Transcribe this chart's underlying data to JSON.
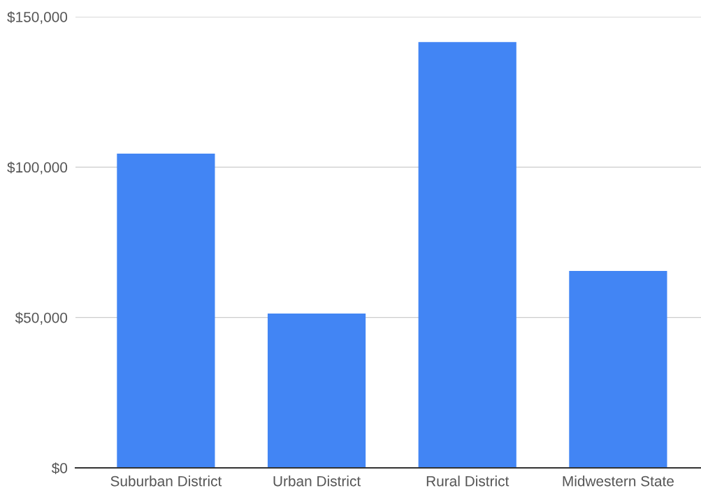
{
  "chart_data": {
    "type": "bar",
    "categories": [
      "Suburban District",
      "Urban District",
      "Rural District",
      "Midwestern State"
    ],
    "values": [
      104500,
      51300,
      141600,
      65500
    ],
    "color": "#4285f4",
    "ylim": [
      0,
      150000
    ],
    "yticks": [
      {
        "value": 0,
        "label": "$0"
      },
      {
        "value": 50000,
        "label": "$50,000"
      },
      {
        "value": 100000,
        "label": "$100,000"
      },
      {
        "value": 150000,
        "label": "$150,000"
      }
    ],
    "grid": "y"
  }
}
